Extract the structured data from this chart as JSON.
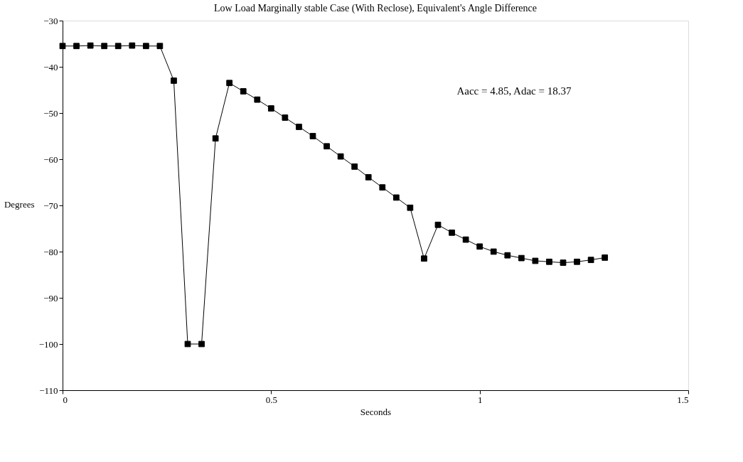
{
  "chart_data": {
    "type": "line",
    "title": "Low Load Marginally stable Case (With Reclose), Equivalent's Angle Difference",
    "xlabel": "Seconds",
    "ylabel": "Degrees",
    "annotations": [
      "Aacc = 4.85,  Adac = 18.37"
    ],
    "x": [
      0,
      0.0333,
      0.0667,
      0.1,
      0.1333,
      0.1667,
      0.2,
      0.2333,
      0.2667,
      0.3,
      0.3333,
      0.3667,
      0.4,
      0.4333,
      0.4667,
      0.5,
      0.5333,
      0.5667,
      0.6,
      0.6333,
      0.6667,
      0.7,
      0.7333,
      0.7667,
      0.8,
      0.8333,
      0.8667,
      0.9,
      0.9333,
      0.9667,
      1.0,
      1.0333,
      1.0667,
      1.1,
      1.1333,
      1.1667,
      1.2,
      1.2333,
      1.2667,
      1.3
    ],
    "series": [
      {
        "color": "#000000",
        "values": [
          -35.5,
          -35.5,
          -35.4,
          -35.5,
          -35.5,
          -35.4,
          -35.5,
          -35.5,
          -43,
          -100,
          -100,
          -55.5,
          -43.5,
          -45.3,
          -47.1,
          -49,
          -51,
          -53,
          -55,
          -57.2,
          -59.4,
          -61.6,
          -63.9,
          -66.1,
          -68.3,
          -70.5,
          -81.5,
          -74.2,
          -75.9,
          -77.4,
          -78.9,
          -80,
          -80.8,
          -81.4,
          -82,
          -82.2,
          -82.4,
          -82.2,
          -81.8,
          -81.3
        ]
      }
    ],
    "xlim": [
      0,
      1.5
    ],
    "xticks": [
      0,
      0.5,
      1,
      1.5
    ],
    "ylim": [
      -110,
      -30
    ],
    "yticks": [
      -30,
      -40,
      -50,
      -60,
      -70,
      -80,
      -90,
      -100,
      -110
    ],
    "grid": false,
    "legend": false,
    "marker": "square",
    "line_style": "solid"
  }
}
